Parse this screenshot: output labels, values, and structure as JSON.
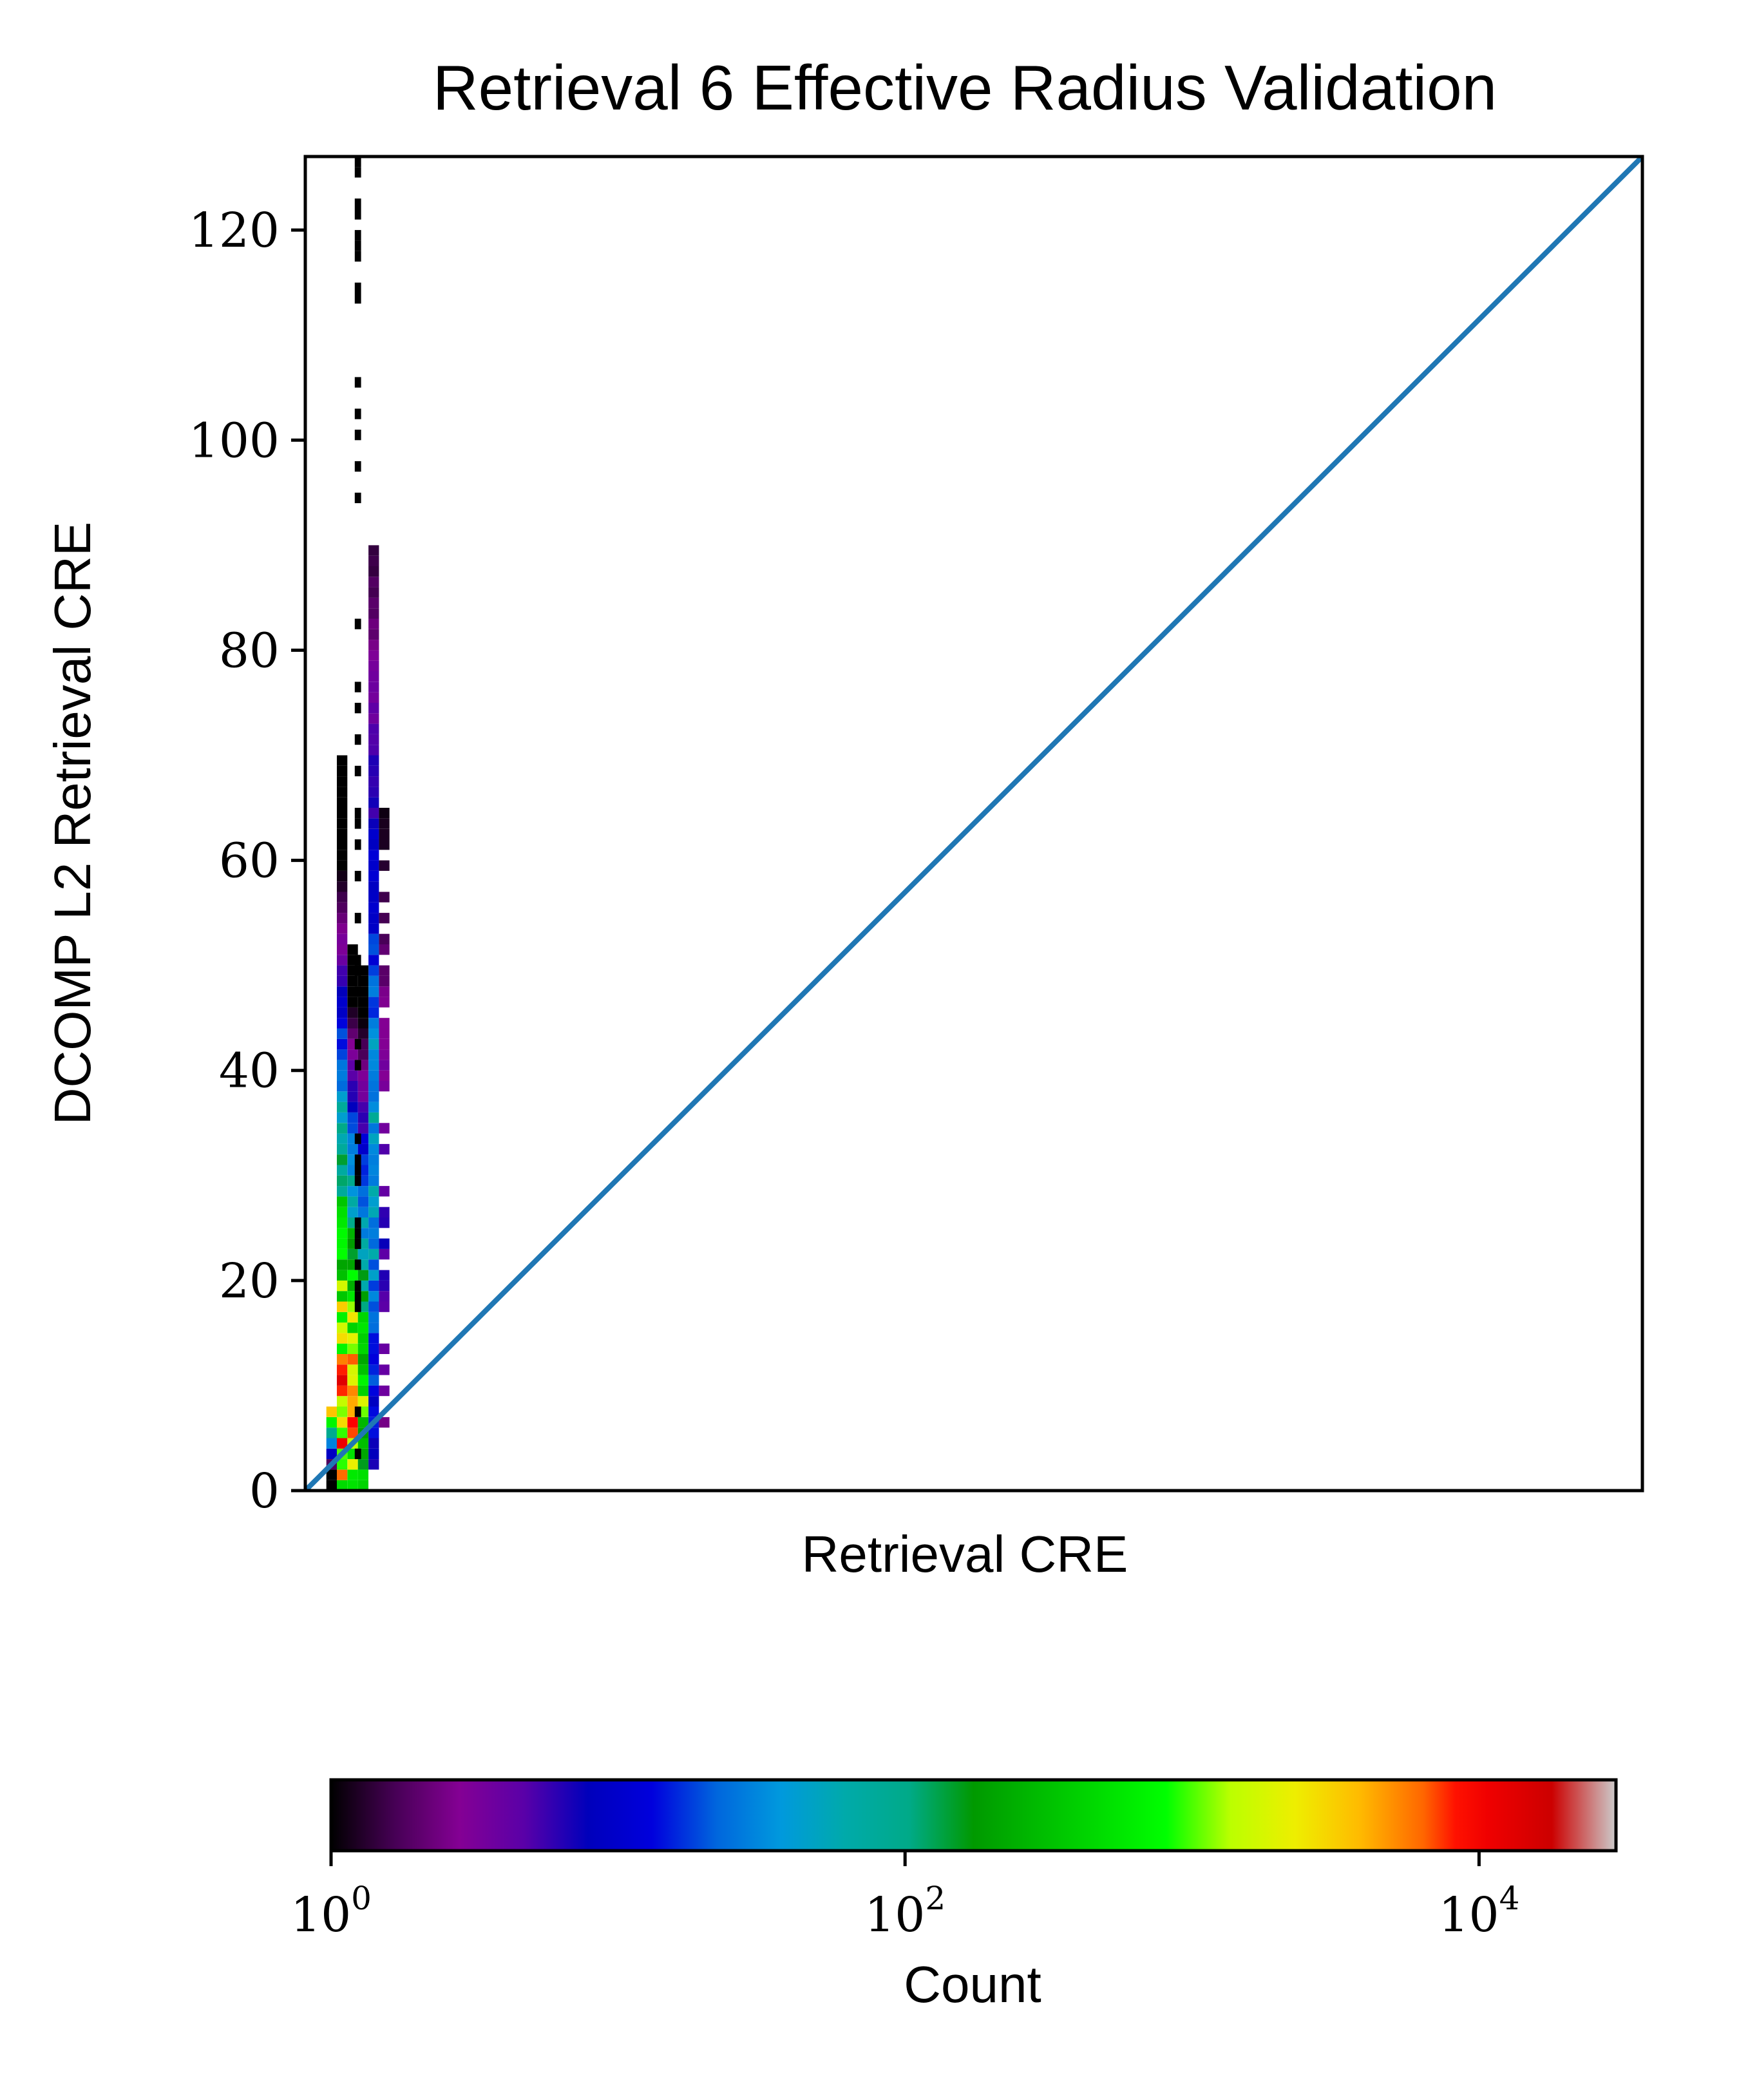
{
  "chart_data": {
    "type": "heatmap",
    "title": "Retrieval 6 Effective Radius Validation",
    "xlabel": "Retrieval CRE",
    "ylabel": "DCOMP L2 Retrieval CRE",
    "xlim": [
      0,
      127
    ],
    "ylim": [
      0,
      127
    ],
    "yticks": [
      0,
      20,
      40,
      60,
      80,
      100,
      120
    ],
    "xticks": [],
    "one_to_one_line": {
      "from": [
        0,
        0
      ],
      "to": [
        127,
        127
      ],
      "color": "#1f77b4"
    },
    "colorbar": {
      "label": "Count",
      "scale": "log",
      "colormap": "nipy_spectral",
      "range": [
        1,
        30000
      ],
      "ticks": [
        {
          "base": "10",
          "exp": "0",
          "value": 1
        },
        {
          "base": "10",
          "exp": "2",
          "value": 100
        },
        {
          "base": "10",
          "exp": "4",
          "value": 10000
        }
      ]
    },
    "histogram_columns": [
      {
        "x": 2.5,
        "y_range": [
          0,
          8
        ],
        "peak_count": 20000
      },
      {
        "x": 3.5,
        "y_range": [
          0,
          70
        ],
        "peak_count": 25000
      },
      {
        "x": 4.5,
        "y_range": [
          0,
          52
        ],
        "peak_count": 30000
      },
      {
        "x": 5.5,
        "y_range": [
          0,
          50
        ],
        "peak_count": 3000
      },
      {
        "x": 6.5,
        "y_range": [
          2,
          90
        ],
        "peak_count": 120
      },
      {
        "x": 7.5,
        "y_range": [
          5,
          65
        ],
        "peak_count": 8
      },
      {
        "x": 5.2,
        "y_range": [
          0,
          127
        ],
        "peak_count": 1
      }
    ]
  },
  "colors": {
    "axis": "#000000",
    "diagonal": "#1f77b4",
    "background": "#ffffff"
  }
}
